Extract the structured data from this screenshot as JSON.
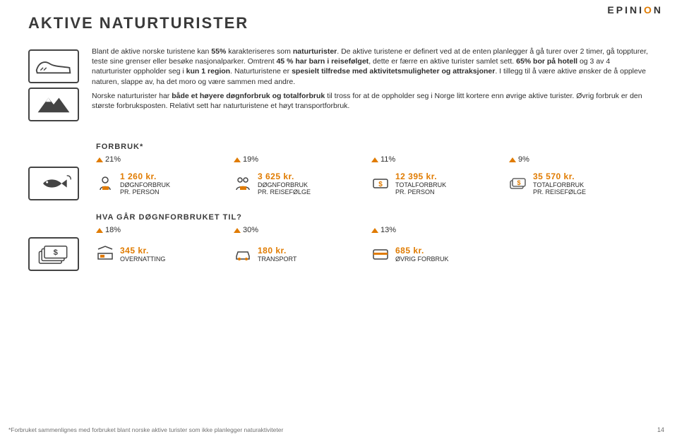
{
  "logo": {
    "pre": "EPINI",
    "accent": "O",
    "post": "N"
  },
  "title": "AKTIVE NATURTURISTER",
  "paragraphs": [
    "Blant de aktive norske turistene kan <b>55%</b> karakteriseres som <b>naturturister</b>. De aktive turistene er definert ved at de enten planlegger å gå turer over 2 timer, gå toppturer, teste sine grenser eller besøke nasjonalparker. Omtrent <b>45 % har barn i reisefølget</b>, dette er færre en aktive turister samlet sett. <b>65% bor på hotell</b> og 3 av 4 naturturister oppholder seg i <b>kun 1 region</b>. Naturturistene er <b>spesielt tilfredse med aktivitetsmuligheter og attraksjoner</b>. I tillegg til å være aktive ønsker de å oppleve naturen, slappe av, ha det moro og være sammen med andre.",
    "Norske naturturister har <b>både et høyere døgnforbruk og totalforbruk</b> til tross for at de oppholder seg i Norge litt kortere enn øvrige aktive turister. Øvrig forbruk er den største forbruksposten. Relativt sett har naturturistene et høyt transportforbruk."
  ],
  "forbruk": {
    "heading": "FORBRUK*",
    "pcts": [
      "21%",
      "19%",
      "11%",
      "9%"
    ],
    "items": [
      {
        "amount": "1 260 kr.",
        "l1": "DØGNFORBRUK",
        "l2": "PR. PERSON"
      },
      {
        "amount": "3 625 kr.",
        "l1": "DØGNFORBRUK",
        "l2": "PR. REISEFØLGE"
      },
      {
        "amount": "12 395 kr.",
        "l1": "TOTALFORBRUK",
        "l2": "PR. PERSON"
      },
      {
        "amount": "35 570 kr.",
        "l1": "TOTALFORBRUK",
        "l2": "PR. REISEFØLGE"
      }
    ]
  },
  "hva": {
    "heading": "HVA GÅR DØGNFORBRUKET TIL?",
    "pcts": [
      "18%",
      "30%",
      "13%"
    ],
    "items": [
      {
        "amount": "345 kr.",
        "l1": "OVERNATTING"
      },
      {
        "amount": "180 kr.",
        "l1": "TRANSPORT"
      },
      {
        "amount": "685 kr.",
        "l1": "ØVRIG FORBRUK"
      }
    ]
  },
  "footnote": "*Forbruket sammenlignes med forbruket blant norske aktive turister som ikke planlegger naturaktiviteter",
  "pagenum": "14",
  "colors": {
    "accent": "#e07b00",
    "text": "#3a3a3a"
  }
}
